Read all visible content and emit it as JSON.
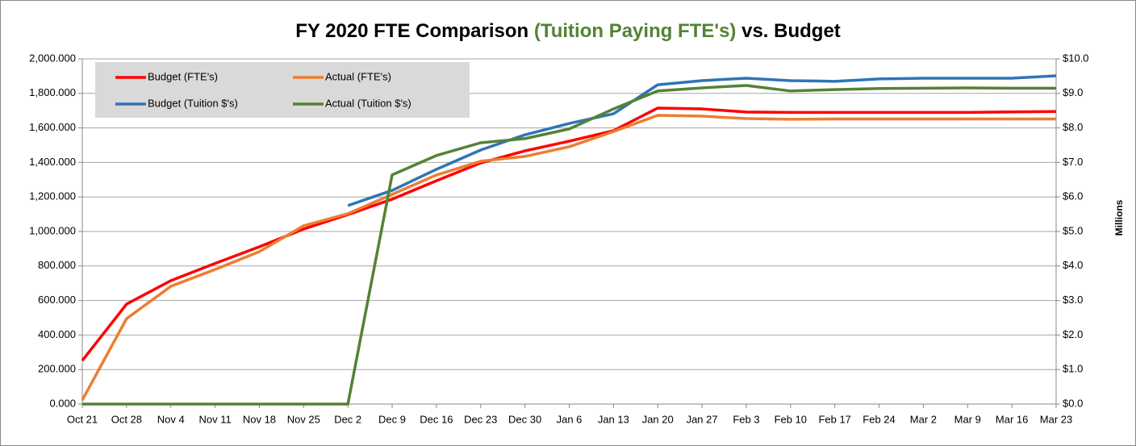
{
  "chart_data": {
    "type": "line",
    "title_parts": [
      "FY 2020 FTE Comparison",
      "(Tuition Paying FTE's)",
      "vs. Budget"
    ],
    "title_highlight_color": "#548235",
    "y2_label": "Millions",
    "categories": [
      "Oct 21",
      "Oct 28",
      "Nov 4",
      "Nov 11",
      "Nov 18",
      "Nov 25",
      "Dec 2",
      "Dec 9",
      "Dec 16",
      "Dec 23",
      "Dec 30",
      "Jan 6",
      "Jan 13",
      "Jan 20",
      "Jan 27",
      "Feb 3",
      "Feb 10",
      "Feb 17",
      "Feb 24",
      "Mar 2",
      "Mar 9",
      "Mar 16",
      "Mar 23"
    ],
    "series": [
      {
        "name": "Budget (FTE's)",
        "color": "#ff0000",
        "values": [
          252,
          579,
          715,
          815,
          911,
          1014,
          1098,
          1187,
          1294,
          1397,
          1467,
          1523,
          1584,
          1715,
          1710,
          1692,
          1690,
          1690,
          1690,
          1690,
          1690,
          1693,
          1695
        ]
      },
      {
        "name": "Actual (FTE's)",
        "color": "#ed7d31",
        "values": [
          23,
          495,
          682,
          780,
          883,
          1033,
          1103,
          1215,
          1327,
          1407,
          1435,
          1491,
          1579,
          1673,
          1668,
          1654,
          1650,
          1652,
          1652,
          1652,
          1652,
          1652,
          1652
        ]
      },
      {
        "name": "Budget (Tuition $'s)",
        "color": "#2e75b6",
        "axis": "y2",
        "values": [
          null,
          null,
          null,
          null,
          null,
          null,
          5.75,
          6.19,
          6.8,
          7.36,
          7.8,
          8.13,
          8.41,
          9.25,
          9.37,
          9.44,
          9.37,
          9.35,
          9.42,
          9.44,
          9.44,
          9.44,
          9.51
        ]
      },
      {
        "name": "Actual (Tuition $'s)",
        "color": "#548235",
        "axis": "y2",
        "values": [
          0,
          0,
          0,
          0,
          0,
          0,
          0,
          6.64,
          7.2,
          7.57,
          7.69,
          7.97,
          8.55,
          9.07,
          9.16,
          9.23,
          9.07,
          9.11,
          9.14,
          9.15,
          9.16,
          9.15,
          9.15
        ]
      }
    ],
    "ylim": [
      0,
      2000
    ],
    "yticks": [
      {
        "value": 0,
        "label": "0.000"
      },
      {
        "value": 200,
        "label": "200.000"
      },
      {
        "value": 400,
        "label": "400.000"
      },
      {
        "value": 600,
        "label": "600.000"
      },
      {
        "value": 800,
        "label": "800.000"
      },
      {
        "value": 1000,
        "label": "1,000.000"
      },
      {
        "value": 1200,
        "label": "1,200.000"
      },
      {
        "value": 1400,
        "label": "1,400.000"
      },
      {
        "value": 1600,
        "label": "1,600.000"
      },
      {
        "value": 1800,
        "label": "1,800.000"
      },
      {
        "value": 2000,
        "label": "2,000.000"
      }
    ],
    "y2lim": [
      0,
      10
    ],
    "y2ticks": [
      {
        "value": 0,
        "label": "$0.0"
      },
      {
        "value": 1,
        "label": "$1.0"
      },
      {
        "value": 2,
        "label": "$2.0"
      },
      {
        "value": 3,
        "label": "$3.0"
      },
      {
        "value": 4,
        "label": "$4.0"
      },
      {
        "value": 5,
        "label": "$5.0"
      },
      {
        "value": 6,
        "label": "$6.0"
      },
      {
        "value": 7,
        "label": "$7.0"
      },
      {
        "value": 8,
        "label": "$8.0"
      },
      {
        "value": 9,
        "label": "$9.0"
      },
      {
        "value": 10,
        "label": "$10.0"
      }
    ],
    "grid": true,
    "legend": "top-left"
  }
}
